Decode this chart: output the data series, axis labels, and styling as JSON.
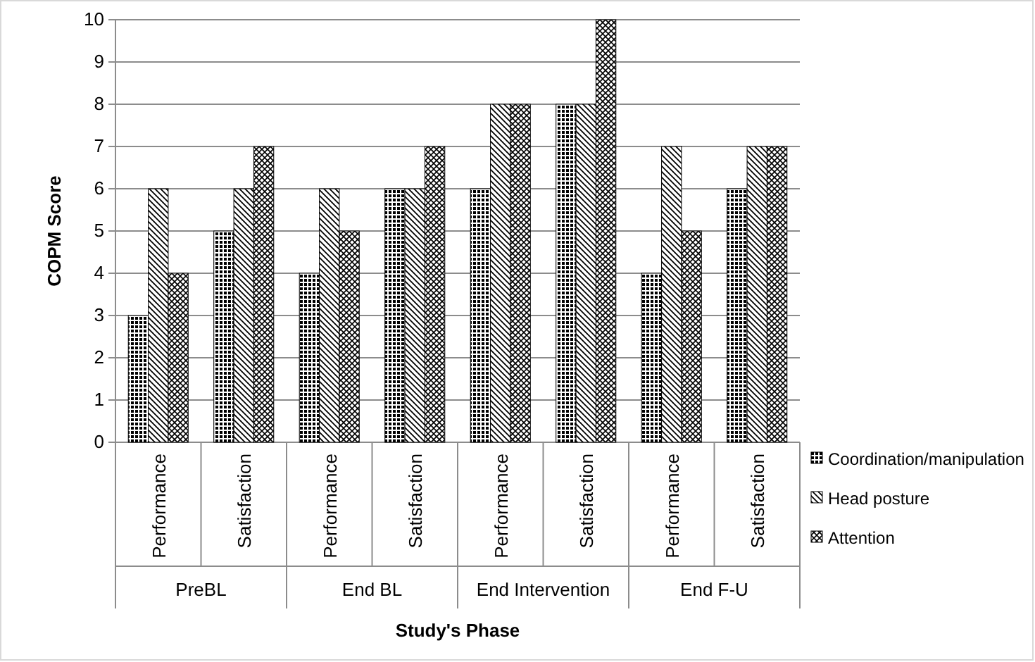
{
  "chart_data": {
    "type": "bar",
    "xlabel": "Study's Phase",
    "ylabel": "COPM Score",
    "categories": [
      "Performance",
      "Satisfaction",
      "Performance",
      "Satisfaction",
      "Performance",
      "Satisfaction",
      "Performance",
      "Satisfaction"
    ],
    "series": [
      {
        "name": "Coordination/manipulation",
        "color": "#000000",
        "values": [
          3,
          5,
          4,
          6,
          6,
          8,
          4,
          6
        ]
      },
      {
        "name": "Head posture",
        "color": "#000000",
        "values": [
          6,
          6,
          6,
          6,
          8,
          8,
          7,
          7
        ]
      },
      {
        "name": "Attention",
        "color": "#000000",
        "values": [
          4,
          7,
          5,
          7,
          8,
          10,
          5,
          7
        ]
      }
    ],
    "annotations": [
      "PreBL",
      "End BL",
      "End Intervention",
      "End F-U"
    ],
    "ylim": [
      0,
      10
    ],
    "yticks": [
      0,
      1,
      2,
      3,
      4,
      5,
      6,
      7,
      8,
      9,
      10
    ],
    "grid": "y",
    "legend": "right"
  }
}
